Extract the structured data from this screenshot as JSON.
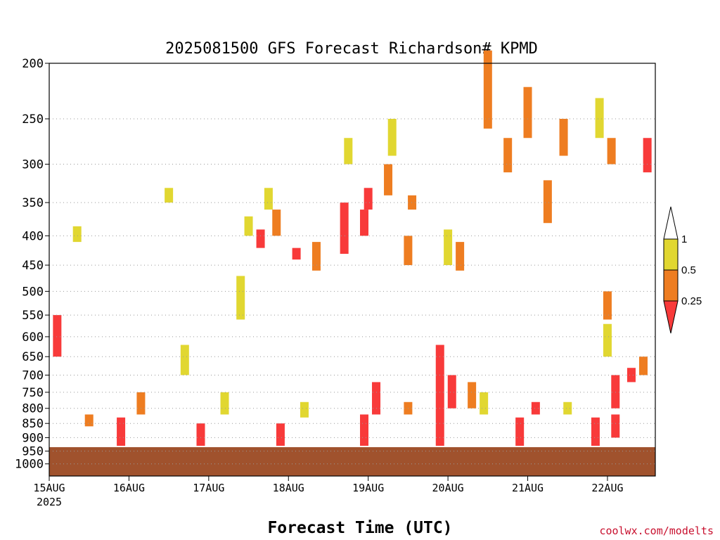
{
  "chart_data": {
    "type": "heatmap",
    "title": "2025081500 GFS Forecast Richardson# KPMD",
    "xlabel": "Forecast Time (UTC)",
    "ylabel": "",
    "y_axis": {
      "scale": "log",
      "inverted": true,
      "ylim": [
        200,
        1050
      ],
      "ticks": [
        200,
        250,
        300,
        350,
        400,
        450,
        500,
        550,
        600,
        650,
        700,
        750,
        800,
        850,
        900,
        950,
        1000
      ]
    },
    "x_axis": {
      "xlim_days": [
        0,
        7.6
      ],
      "ticks": [
        {
          "day": 0,
          "label": "15AUG",
          "sub": "2025"
        },
        {
          "day": 1,
          "label": "16AUG",
          "sub": ""
        },
        {
          "day": 2,
          "label": "17AUG",
          "sub": ""
        },
        {
          "day": 3,
          "label": "18AUG",
          "sub": ""
        },
        {
          "day": 4,
          "label": "19AUG",
          "sub": ""
        },
        {
          "day": 5,
          "label": "20AUG",
          "sub": ""
        },
        {
          "day": 6,
          "label": "21AUG",
          "sub": ""
        },
        {
          "day": 7,
          "label": "22AUG",
          "sub": ""
        }
      ]
    },
    "grid": "dotted horizontal at y ticks",
    "legend": {
      "placement": "right",
      "top_label": "1",
      "levels": [
        {
          "label": "0.5",
          "color": "#e1d731"
        },
        {
          "label": "0.25",
          "color": "#ee7d21"
        },
        {
          "label": "",
          "color": "#f83a3a"
        }
      ],
      "labels": [
        "1",
        "0.5",
        "0.25"
      ]
    },
    "colors": {
      "lt_025": "#f83a3a",
      "025_05": "#ee7d21",
      "05_1": "#e1d731",
      "ground": "#a0522d"
    },
    "ground_pressure_hpa": 935,
    "cells": [
      {
        "day": 1.5,
        "p1": 330,
        "p2": 350,
        "c": "05_1"
      },
      {
        "day": 0.35,
        "p1": 385,
        "p2": 410,
        "c": "05_1"
      },
      {
        "day": 2.75,
        "p1": 330,
        "p2": 360,
        "c": "05_1"
      },
      {
        "day": 2.85,
        "p1": 360,
        "p2": 400,
        "c": "025_05"
      },
      {
        "day": 2.65,
        "p1": 390,
        "p2": 420,
        "c": "lt_025"
      },
      {
        "day": 3.7,
        "p1": 350,
        "p2": 430,
        "c": "lt_025"
      },
      {
        "day": 3.95,
        "p1": 360,
        "p2": 400,
        "c": "lt_025"
      },
      {
        "day": 4.25,
        "p1": 300,
        "p2": 340,
        "c": "025_05"
      },
      {
        "day": 4.0,
        "p1": 330,
        "p2": 360,
        "c": "lt_025"
      },
      {
        "day": 4.55,
        "p1": 340,
        "p2": 360,
        "c": "025_05"
      },
      {
        "day": 4.3,
        "p1": 250,
        "p2": 290,
        "c": "05_1"
      },
      {
        "day": 3.75,
        "p1": 270,
        "p2": 300,
        "c": "05_1"
      },
      {
        "day": 3.35,
        "p1": 410,
        "p2": 460,
        "c": "025_05"
      },
      {
        "day": 3.1,
        "p1": 420,
        "p2": 440,
        "c": "lt_025"
      },
      {
        "day": 2.5,
        "p1": 370,
        "p2": 400,
        "c": "05_1"
      },
      {
        "day": 2.4,
        "p1": 470,
        "p2": 560,
        "c": "05_1"
      },
      {
        "day": 4.5,
        "p1": 400,
        "p2": 450,
        "c": "025_05"
      },
      {
        "day": 5.0,
        "p1": 390,
        "p2": 450,
        "c": "05_1"
      },
      {
        "day": 5.15,
        "p1": 410,
        "p2": 460,
        "c": "025_05"
      },
      {
        "day": 5.5,
        "p1": 190,
        "p2": 260,
        "c": "025_05"
      },
      {
        "day": 6.0,
        "p1": 220,
        "p2": 270,
        "c": "025_05"
      },
      {
        "day": 5.75,
        "p1": 270,
        "p2": 310,
        "c": "025_05"
      },
      {
        "day": 6.25,
        "p1": 320,
        "p2": 380,
        "c": "025_05"
      },
      {
        "day": 6.45,
        "p1": 250,
        "p2": 290,
        "c": "025_05"
      },
      {
        "day": 6.9,
        "p1": 230,
        "p2": 270,
        "c": "05_1"
      },
      {
        "day": 7.05,
        "p1": 270,
        "p2": 300,
        "c": "025_05"
      },
      {
        "day": 7.5,
        "p1": 270,
        "p2": 310,
        "c": "lt_025"
      },
      {
        "day": 7.0,
        "p1": 500,
        "p2": 560,
        "c": "025_05"
      },
      {
        "day": 7.0,
        "p1": 570,
        "p2": 650,
        "c": "05_1"
      },
      {
        "day": 1.7,
        "p1": 620,
        "p2": 700,
        "c": "05_1"
      },
      {
        "day": 0.1,
        "p1": 550,
        "p2": 650,
        "c": "lt_025"
      },
      {
        "day": 0.5,
        "p1": 820,
        "p2": 860,
        "c": "025_05"
      },
      {
        "day": 0.9,
        "p1": 830,
        "p2": 930,
        "c": "lt_025"
      },
      {
        "day": 1.15,
        "p1": 750,
        "p2": 820,
        "c": "025_05"
      },
      {
        "day": 1.9,
        "p1": 850,
        "p2": 930,
        "c": "lt_025"
      },
      {
        "day": 2.2,
        "p1": 750,
        "p2": 820,
        "c": "05_1"
      },
      {
        "day": 2.9,
        "p1": 850,
        "p2": 930,
        "c": "lt_025"
      },
      {
        "day": 3.2,
        "p1": 780,
        "p2": 830,
        "c": "05_1"
      },
      {
        "day": 3.95,
        "p1": 820,
        "p2": 930,
        "c": "lt_025"
      },
      {
        "day": 4.1,
        "p1": 720,
        "p2": 820,
        "c": "lt_025"
      },
      {
        "day": 4.5,
        "p1": 780,
        "p2": 820,
        "c": "025_05"
      },
      {
        "day": 4.9,
        "p1": 620,
        "p2": 930,
        "c": "lt_025"
      },
      {
        "day": 5.05,
        "p1": 700,
        "p2": 800,
        "c": "lt_025"
      },
      {
        "day": 5.3,
        "p1": 720,
        "p2": 800,
        "c": "025_05"
      },
      {
        "day": 5.45,
        "p1": 750,
        "p2": 820,
        "c": "05_1"
      },
      {
        "day": 5.9,
        "p1": 830,
        "p2": 930,
        "c": "lt_025"
      },
      {
        "day": 6.1,
        "p1": 780,
        "p2": 820,
        "c": "lt_025"
      },
      {
        "day": 6.5,
        "p1": 780,
        "p2": 820,
        "c": "05_1"
      },
      {
        "day": 6.85,
        "p1": 830,
        "p2": 930,
        "c": "lt_025"
      },
      {
        "day": 7.1,
        "p1": 700,
        "p2": 800,
        "c": "lt_025"
      },
      {
        "day": 7.3,
        "p1": 680,
        "p2": 720,
        "c": "lt_025"
      },
      {
        "day": 7.45,
        "p1": 650,
        "p2": 700,
        "c": "025_05"
      },
      {
        "day": 7.1,
        "p1": 820,
        "p2": 900,
        "c": "lt_025"
      }
    ]
  },
  "credit": "coolwx.com/modelts"
}
